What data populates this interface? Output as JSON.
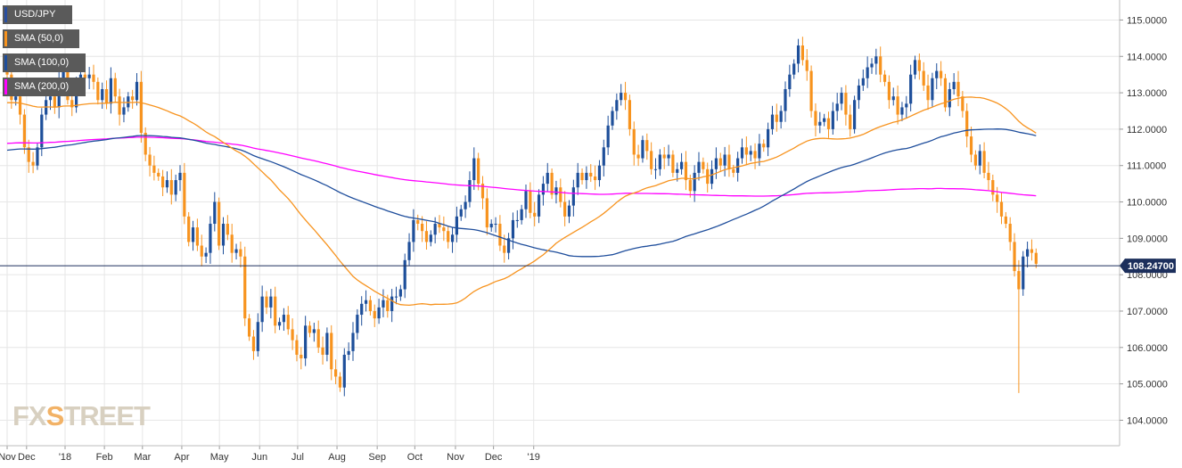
{
  "legend": [
    {
      "label": "USD/JPY",
      "color": "#2a4fa0"
    },
    {
      "label": "SMA (50,0)",
      "color": "#f7931e"
    },
    {
      "label": "SMA (100,0)",
      "color": "#1f4e9c"
    },
    {
      "label": "SMA (200,0)",
      "color": "#ff00ff"
    }
  ],
  "logo": {
    "left": "FX",
    "x": "S",
    "right": "TREET"
  },
  "chart_data": {
    "type": "candlestick",
    "title": "USD/JPY",
    "ylim": [
      103.3,
      115.55
    ],
    "y_ticks": [
      "115.0000",
      "114.0000",
      "113.0000",
      "112.0000",
      "111.0000",
      "110.0000",
      "109.0000",
      "108.0000",
      "107.0000",
      "106.0000",
      "105.0000",
      "104.0000"
    ],
    "x_ticks": [
      {
        "label": "Nov",
        "week": 0
      },
      {
        "label": "Dec",
        "week": 4.5
      },
      {
        "label": "'18",
        "week": 13.4
      },
      {
        "label": "Feb",
        "week": 22.5
      },
      {
        "label": "Mar",
        "week": 31.3
      },
      {
        "label": "Apr",
        "week": 40.4
      },
      {
        "label": "May",
        "week": 49.1
      },
      {
        "label": "Jun",
        "week": 58.4
      },
      {
        "label": "Jul",
        "week": 67.2
      },
      {
        "label": "Aug",
        "week": 76.3
      },
      {
        "label": "Sep",
        "week": 85.6
      },
      {
        "label": "Oct",
        "week": 94.3
      },
      {
        "label": "Nov",
        "week": 103.7
      },
      {
        "label": "Dec",
        "week": 112.5
      },
      {
        "label": "'19",
        "week": 121.8
      }
    ],
    "current_price": 108.247,
    "current_price_label": "108.24700",
    "closes": [
      113.5,
      112.8,
      112.9,
      112.4,
      111.5,
      111.1,
      111.0,
      111.5,
      112.4,
      112.8,
      112.9,
      112.6,
      113.4,
      113.7,
      112.8,
      112.6,
      113.2,
      113.5,
      113.4,
      113.5,
      113.3,
      112.8,
      113.1,
      112.7,
      113.4,
      112.9,
      112.4,
      112.6,
      112.9,
      112.8,
      113.3,
      111.9,
      111.3,
      111.0,
      110.8,
      110.7,
      110.4,
      110.6,
      110.2,
      110.6,
      110.8,
      109.6,
      108.9,
      109.3,
      108.8,
      108.5,
      108.6,
      109.4,
      110.0,
      108.8,
      109.4,
      109.1,
      108.6,
      108.7,
      108.5,
      106.8,
      106.3,
      105.9,
      106.7,
      107.4,
      107.1,
      107.4,
      106.6,
      106.7,
      106.9,
      106.5,
      106.2,
      105.8,
      105.7,
      106.6,
      106.4,
      106.5,
      106.0,
      105.8,
      106.4,
      105.4,
      105.2,
      104.9,
      105.8,
      105.9,
      106.4,
      106.9,
      107.2,
      107.3,
      107.0,
      106.8,
      107.1,
      107.3,
      107.0,
      107.4,
      107.4,
      107.6,
      108.4,
      108.9,
      109.5,
      109.4,
      109.2,
      108.9,
      109.1,
      109.4,
      109.3,
      109.2,
      108.9,
      109.1,
      109.6,
      109.8,
      110.0,
      110.6,
      111.2,
      110.5,
      110.1,
      109.3,
      109.4,
      109.4,
      108.8,
      108.6,
      109.0,
      109.5,
      109.5,
      109.8,
      110.3,
      109.7,
      109.6,
      110.2,
      110.5,
      110.8,
      110.2,
      110.4,
      110.0,
      109.6,
      109.9,
      110.4,
      110.8,
      110.6,
      110.8,
      110.7,
      110.6,
      111.0,
      111.5,
      112.1,
      112.5,
      112.8,
      113.0,
      112.8,
      112.0,
      111.3,
      111.2,
      111.7,
      111.4,
      110.9,
      110.9,
      111.3,
      111.2,
      111.3,
      110.8,
      110.9,
      111.1,
      110.6,
      110.3,
      110.8,
      111.1,
      110.9,
      110.5,
      110.9,
      111.2,
      111.0,
      111.3,
      110.9,
      110.8,
      111.2,
      111.5,
      111.3,
      111.4,
      111.2,
      111.6,
      111.5,
      112.0,
      112.4,
      112.2,
      112.5,
      113.1,
      113.5,
      113.8,
      114.3,
      113.9,
      113.6,
      112.5,
      112.1,
      112.2,
      112.3,
      112.0,
      112.5,
      112.7,
      113.0,
      112.4,
      112.0,
      112.8,
      113.2,
      113.4,
      113.7,
      113.8,
      114.0,
      113.5,
      113.3,
      112.8,
      112.9,
      112.4,
      112.6,
      112.7,
      113.5,
      113.9,
      113.6,
      113.2,
      112.8,
      113.4,
      113.6,
      113.4,
      112.6,
      113.1,
      113.3,
      112.9,
      112.5,
      111.8,
      111.3,
      111.0,
      111.4,
      110.8,
      110.6,
      110.2,
      110.0,
      109.6,
      109.4,
      108.9,
      108.1,
      107.6,
      108.5,
      108.7,
      108.6,
      108.3
    ]
  }
}
